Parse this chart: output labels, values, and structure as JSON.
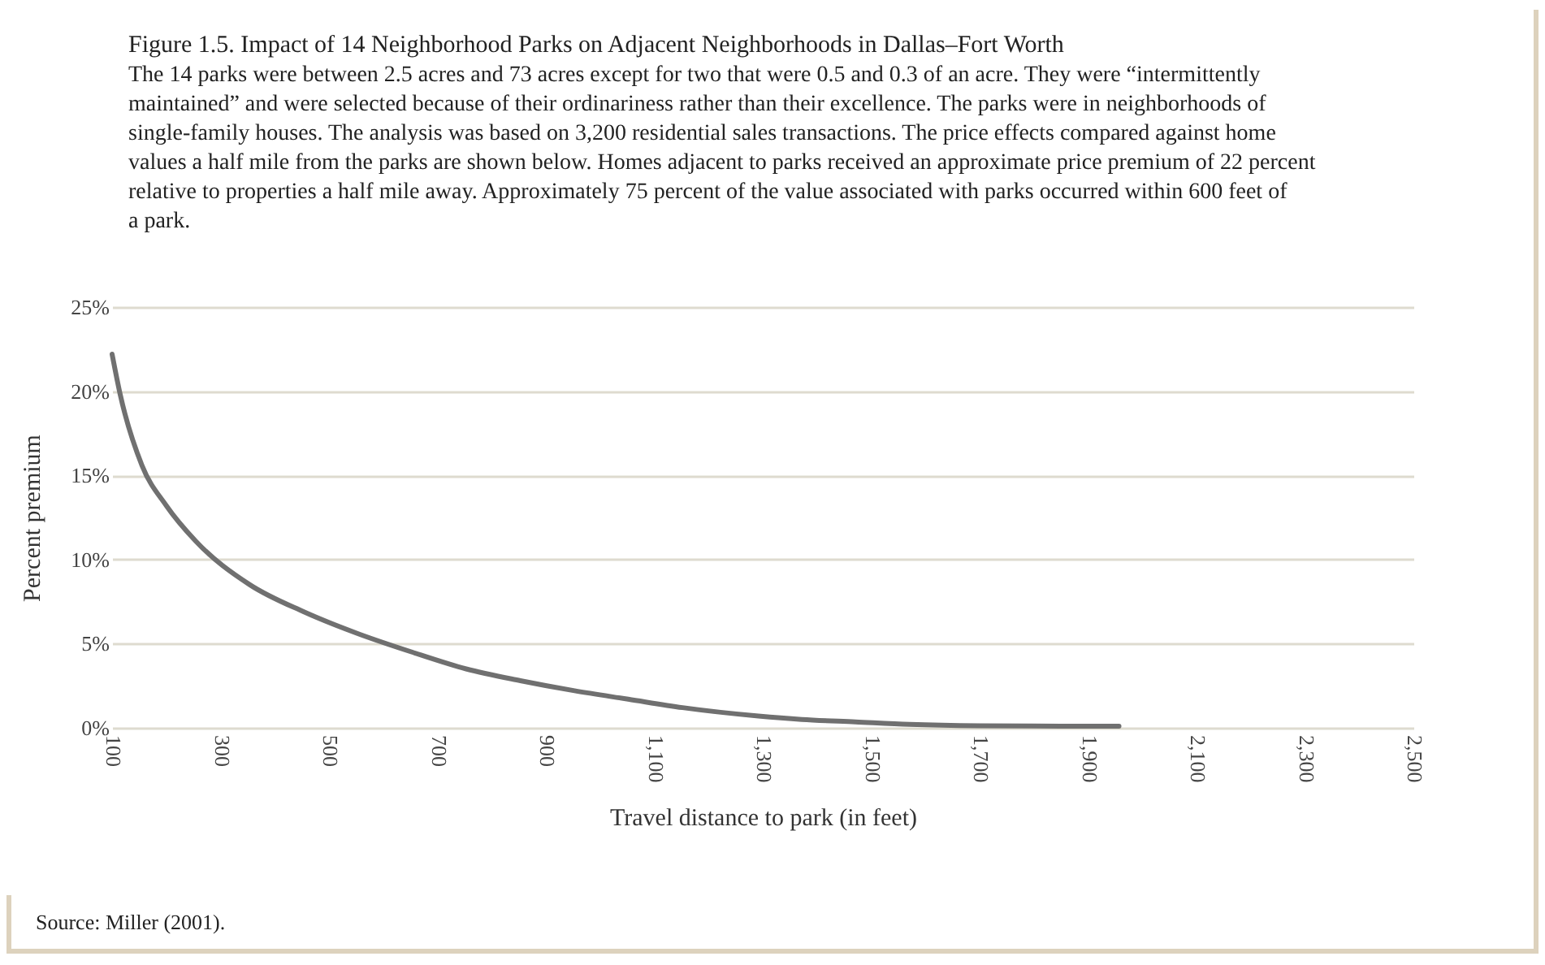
{
  "chart_data": {
    "type": "line",
    "title": "Figure 1.5.   Impact of 14 Neighborhood Parks on Adjacent Neighborhoods in Dallas–Fort Worth",
    "subtitle": "The 14 parks were between 2.5 acres and 73 acres except for two that were 0.5 and 0.3 of an acre. They were “intermittently maintained” and were selected because of their ordinariness rather than their excellence. The parks were in neighborhoods of single-family houses. The analysis was based on 3,200 residential sales transactions. The price effects compared against home values a half mile from the parks are shown below. Homes adjacent to parks received an approximate price premium of 22 percent relative to properties a half mile away. Approximately 75 percent of the value associated with parks occurred within 600 feet of a park.",
    "xlabel": "Travel distance to park (in feet)",
    "ylabel": "Percent premium",
    "annotations": [
      "Source: Miller (2001)."
    ],
    "x": [
      100,
      115,
      155,
      200,
      254,
      354,
      453,
      553,
      653,
      753,
      853,
      953,
      1052,
      1152,
      1292,
      1372,
      1471,
      1571,
      1700,
      1850,
      1957
    ],
    "series": [
      {
        "color": "#707070",
        "values": [
          22.2,
          19.8,
          15.6,
          13.2,
          11.1,
          8.5,
          6.9,
          5.6,
          4.5,
          3.5,
          2.8,
          2.2,
          1.7,
          1.2,
          0.7,
          0.5,
          0.35,
          0.2,
          0.12,
          0.1,
          0.1
        ]
      }
    ],
    "xlim": [
      100,
      2500
    ],
    "xticks": [
      100,
      300,
      500,
      700,
      900,
      {
        "value": 1100,
        "label": "1,100"
      },
      {
        "value": 1300,
        "label": "1,300"
      },
      {
        "value": 1500,
        "label": "1,500"
      },
      {
        "value": 1700,
        "label": "1,700"
      },
      {
        "value": 1900,
        "label": "1,900"
      },
      {
        "value": 2100,
        "label": "2,100"
      },
      {
        "value": 2300,
        "label": "2,300"
      },
      {
        "value": 2500,
        "label": "2,500"
      }
    ],
    "ylim": [
      0,
      25
    ],
    "yticks": [
      {
        "value": 0,
        "label": "0%"
      },
      {
        "value": 5,
        "label": "5%"
      },
      {
        "value": 10,
        "label": "10%"
      },
      {
        "value": 15,
        "label": "15%"
      },
      {
        "value": 20,
        "label": "20%"
      },
      {
        "value": 25,
        "label": "25%"
      }
    ],
    "grid": "y",
    "marker": "none",
    "line_style": "solid"
  }
}
